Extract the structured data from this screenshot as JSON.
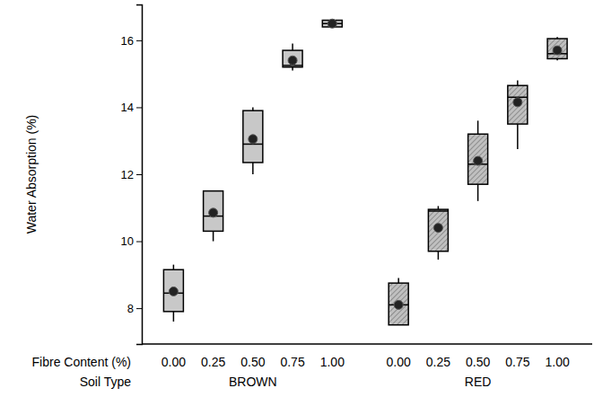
{
  "chart_data": {
    "type": "box",
    "ylabel": "Water Absorption (%)",
    "xlabel": "Fibre Content (%)",
    "group_label": "Soil Type",
    "ylim": [
      6.93,
      17.07
    ],
    "yticks": [
      8,
      10,
      12,
      14,
      16
    ],
    "groups": [
      {
        "name": "BROWN",
        "color": "#c8c8c8",
        "marker": "circle",
        "categories": [
          "0.00",
          "0.25",
          "0.50",
          "0.75",
          "1.00"
        ],
        "min": [
          7.6,
          10.0,
          12.0,
          15.1,
          16.4
        ],
        "q1": [
          7.9,
          10.3,
          12.35,
          15.2,
          16.4
        ],
        "median": [
          8.45,
          10.75,
          12.9,
          15.25,
          16.5
        ],
        "q3": [
          9.15,
          11.5,
          13.9,
          15.7,
          16.6
        ],
        "max": [
          9.3,
          11.5,
          14.0,
          15.9,
          16.6
        ],
        "mean": [
          8.5,
          10.85,
          13.05,
          15.4,
          16.5
        ]
      },
      {
        "name": "RED",
        "color": "#c0c0c0",
        "marker": "circle",
        "categories": [
          "0.00",
          "0.25",
          "0.50",
          "0.75",
          "1.00"
        ],
        "min": [
          7.5,
          9.45,
          11.2,
          12.75,
          15.4
        ],
        "q1": [
          7.5,
          9.7,
          11.7,
          13.5,
          15.45
        ],
        "median": [
          8.1,
          10.9,
          12.3,
          14.3,
          15.6
        ],
        "q3": [
          8.75,
          10.95,
          13.2,
          14.65,
          16.05
        ],
        "max": [
          8.9,
          11.05,
          13.6,
          14.8,
          16.1
        ],
        "mean": [
          8.1,
          10.4,
          12.4,
          14.15,
          15.7
        ]
      }
    ]
  }
}
